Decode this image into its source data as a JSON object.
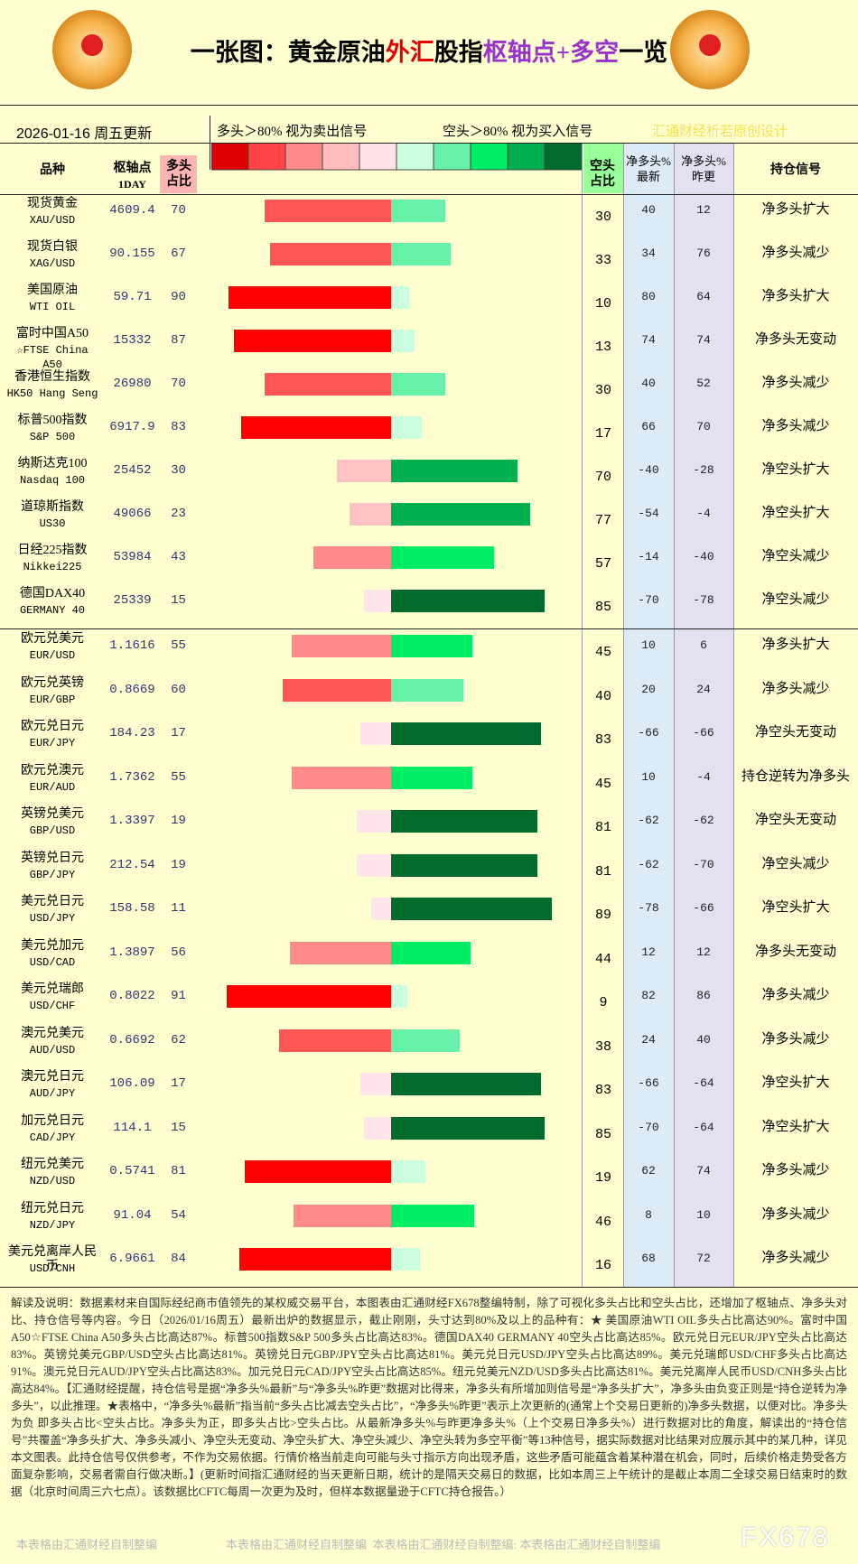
{
  "header": {
    "title_parts": [
      "一张图：黄金原油",
      "外汇",
      "股指",
      "枢轴点+多空",
      "一览"
    ],
    "date": "2026-01-16 周五更新",
    "legend_long": "多头＞80% 视为卖出信号",
    "legend_short": "空头＞80% 视为买入信号",
    "credit": "汇通财经析若原创设计"
  },
  "table": {
    "columns": {
      "name": "品种",
      "pivot": [
        "枢轴点",
        "1DAY"
      ],
      "long": "多头占比",
      "short": "空头占比",
      "net_latest": "净多头%最新",
      "net_prev": "净多头%昨更",
      "signal": "持仓信号"
    },
    "groups": [
      {
        "rows": [
          {
            "name": "现货黄金",
            "code": "XAU/USD",
            "pivot": "4609.4",
            "long": 70,
            "short": 30,
            "net_latest": 40,
            "net_prev": 12,
            "signal": "净多头扩大"
          },
          {
            "name": "现货白银",
            "code": "XAG/USD",
            "pivot": "90.155",
            "long": 67,
            "short": 33,
            "net_latest": 34,
            "net_prev": 76,
            "signal": "净多头减少"
          },
          {
            "name": "美国原油",
            "code": "WTI OIL",
            "pivot": "59.71",
            "long": 90,
            "short": 10,
            "net_latest": 80,
            "net_prev": 64,
            "signal": "净多头扩大"
          },
          {
            "name": "富时中国A50",
            "code": "☆FTSE China A50",
            "pivot": "15332",
            "long": 87,
            "short": 13,
            "net_latest": 74,
            "net_prev": 74,
            "signal": "净多头无变动"
          },
          {
            "name": "香港恒生指数",
            "code": "HK50 Hang Seng",
            "pivot": "26980",
            "long": 70,
            "short": 30,
            "net_latest": 40,
            "net_prev": 52,
            "signal": "净多头减少"
          },
          {
            "name": "标普500指数",
            "code": "S&P 500",
            "pivot": "6917.9",
            "long": 83,
            "short": 17,
            "net_latest": 66,
            "net_prev": 70,
            "signal": "净多头减少"
          },
          {
            "name": "纳斯达克100",
            "code": "Nasdaq 100",
            "pivot": "25452",
            "long": 30,
            "short": 70,
            "net_latest": -40,
            "net_prev": -28,
            "signal": "净空头扩大"
          },
          {
            "name": "道琼斯指数",
            "code": "US30",
            "pivot": "49066",
            "long": 23,
            "short": 77,
            "net_latest": -54,
            "net_prev": -4,
            "signal": "净空头扩大"
          },
          {
            "name": "日经225指数",
            "code": "Nikkei225",
            "pivot": "53984",
            "long": 43,
            "short": 57,
            "net_latest": -14,
            "net_prev": -40,
            "signal": "净空头减少"
          },
          {
            "name": "德国DAX40",
            "code": "GERMANY 40",
            "pivot": "25339",
            "long": 15,
            "short": 85,
            "net_latest": -70,
            "net_prev": -78,
            "signal": "净空头减少"
          }
        ]
      },
      {
        "rows": [
          {
            "name": "欧元兑美元",
            "code": "EUR/USD",
            "pivot": "1.1616",
            "long": 55,
            "short": 45,
            "net_latest": 10,
            "net_prev": 6,
            "signal": "净多头扩大"
          },
          {
            "name": "欧元兑英镑",
            "code": "EUR/GBP",
            "pivot": "0.8669",
            "long": 60,
            "short": 40,
            "net_latest": 20,
            "net_prev": 24,
            "signal": "净多头减少"
          },
          {
            "name": "欧元兑日元",
            "code": "EUR/JPY",
            "pivot": "184.23",
            "long": 17,
            "short": 83,
            "net_latest": -66,
            "net_prev": -66,
            "signal": "净空头无变动"
          },
          {
            "name": "欧元兑澳元",
            "code": "EUR/AUD",
            "pivot": "1.7362",
            "long": 55,
            "short": 45,
            "net_latest": 10,
            "net_prev": -4,
            "signal": "持仓逆转为净多头"
          },
          {
            "name": "英镑兑美元",
            "code": "GBP/USD",
            "pivot": "1.3397",
            "long": 19,
            "short": 81,
            "net_latest": -62,
            "net_prev": -62,
            "signal": "净空头无变动"
          },
          {
            "name": "英镑兑日元",
            "code": "GBP/JPY",
            "pivot": "212.54",
            "long": 19,
            "short": 81,
            "net_latest": -62,
            "net_prev": -70,
            "signal": "净空头减少"
          },
          {
            "name": "美元兑日元",
            "code": "USD/JPY",
            "pivot": "158.58",
            "long": 11,
            "short": 89,
            "net_latest": -78,
            "net_prev": -66,
            "signal": "净空头扩大"
          },
          {
            "name": "美元兑加元",
            "code": "USD/CAD",
            "pivot": "1.3897",
            "long": 56,
            "short": 44,
            "net_latest": 12,
            "net_prev": 12,
            "signal": "净多头无变动"
          },
          {
            "name": "美元兑瑞郎",
            "code": "USD/CHF",
            "pivot": "0.8022",
            "long": 91,
            "short": 9,
            "net_latest": 82,
            "net_prev": 86,
            "signal": "净多头减少"
          },
          {
            "name": "澳元兑美元",
            "code": "AUD/USD",
            "pivot": "0.6692",
            "long": 62,
            "short": 38,
            "net_latest": 24,
            "net_prev": 40,
            "signal": "净多头减少"
          },
          {
            "name": "澳元兑日元",
            "code": "AUD/JPY",
            "pivot": "106.09",
            "long": 17,
            "short": 83,
            "net_latest": -66,
            "net_prev": -64,
            "signal": "净空头扩大"
          },
          {
            "name": "加元兑日元",
            "code": "CAD/JPY",
            "pivot": "114.1",
            "long": 15,
            "short": 85,
            "net_latest": -70,
            "net_prev": -64,
            "signal": "净空头扩大"
          },
          {
            "name": "纽元兑美元",
            "code": "NZD/USD",
            "pivot": "0.5741",
            "long": 81,
            "short": 19,
            "net_latest": 62,
            "net_prev": 74,
            "signal": "净多头减少"
          },
          {
            "name": "纽元兑日元",
            "code": "NZD/JPY",
            "pivot": "91.04",
            "long": 54,
            "short": 46,
            "net_latest": 8,
            "net_prev": 10,
            "signal": "净多头减少"
          },
          {
            "name": "美元兑离岸人民币",
            "code": "USD/CNH",
            "pivot": "6.9661",
            "long": 84,
            "short": 16,
            "net_latest": 68,
            "net_prev": 72,
            "signal": "净多头减少"
          }
        ]
      }
    ]
  },
  "footer": {
    "text": "解读及说明：数据素材来自国际经纪商市值领先的某权威交易平台，本图表由汇通财经FX678整编特制，除了可视化多头占比和空头占比，还增加了枢轴点、净多头对比、持仓信号等内容。今日（2026/01/16周五）最新出炉的数据显示，截止刚刚，头寸达到80%及以上的品种有：★ 美国原油WTI OIL多头占比高达90%。富时中国A50☆FTSE China A50多头占比高达87%。标普500指数S&P 500多头占比高达83%。德国DAX40 GERMANY 40空头占比高达85%。欧元兑日元EUR/JPY空头占比高达83%。英镑兑美元GBP/USD空头占比高达81%。英镑兑日元GBP/JPY空头占比高达81%。美元兑日元USD/JPY空头占比高达89%。美元兑瑞郎USD/CHF多头占比高达91%。澳元兑日元AUD/JPY空头占比高达83%。加元兑日元CAD/JPY空头占比高达85%。纽元兑美元NZD/USD多头占比高达81%。美元兑离岸人民币USD/CNH多头占比高达84%。【汇通财经提醒，持仓信号是据“净多头%最新”与“净多头%昨更”数据对比得来，净多头有所增加则信号是“净多头扩大”，净多头由负变正则是“持仓逆转为净多头”，以此推理。★表格中，“净多头%最新”指当前“多头占比减去空头占比”，“净多头%昨更”表示上次更新的(通常上个交易日更新的)净多头数据，以便对比。净多头为负 即多头占比<空头占比。净多头为正，即多头占比>空头占比。从最新净多头%与昨更净多头%（上个交易日净多头%）进行数据对比的角度，解读出的“持仓信号”共覆盖“净多头扩大、净多头减小、净空头无变动、净空头扩大、净空头减少、净空头转为多空平衡”等13种信号，据实际数据对比结果对应展示其中的某几种，详见本文图表。此持仓信号仅供参考，不作为交易依据。行情价格当前走向可能与头寸指示方向出现矛盾，这些矛盾可能蕴含着某种潜在机会，同时，后续价格走势受各方面复杂影响，交易者需自行做决断。】(更新时间指汇通财经的当天更新日期，统计的是隔天交易日的数据，比如本周三上午统计的是截止本周二全球交易日结束时的数据（北京时间周三六七点）。该数据比CFTC每周一次更为及时，但样本数据量逊于CFTC持仓报告。）",
    "watermarks": [
      "本表格由汇通财经自制整编",
      "本表格由汇通财经自制整编  本表格由汇通财经自制整编: 本表格由汇通财经自制整编"
    ],
    "brand": "FX678"
  }
}
